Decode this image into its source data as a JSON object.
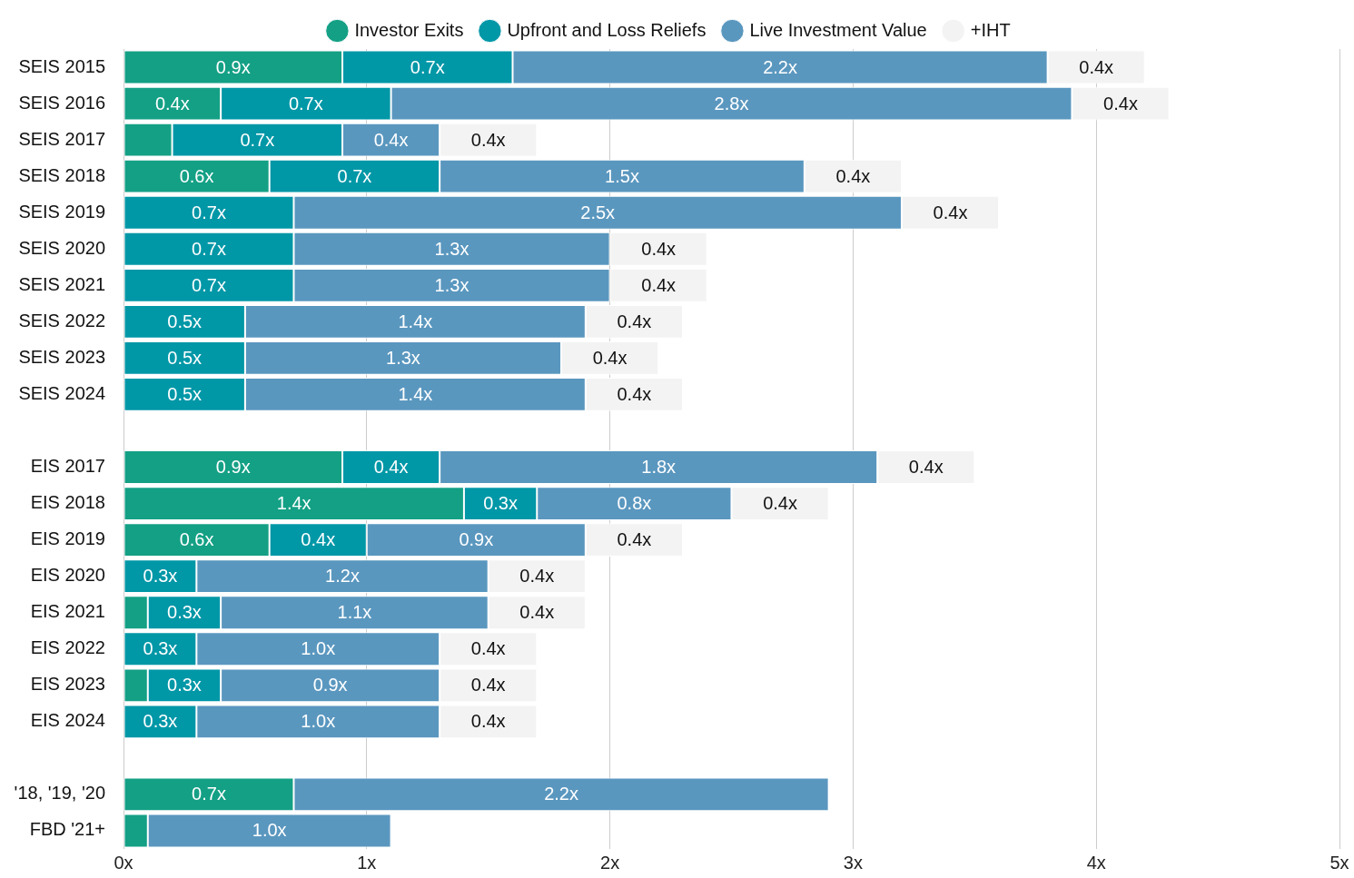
{
  "chart_data": {
    "type": "bar",
    "orientation": "horizontal",
    "stacked": true,
    "categories": [
      "SEIS 2015",
      "SEIS 2016",
      "SEIS 2017",
      "SEIS 2018",
      "SEIS 2019",
      "SEIS 2020",
      "SEIS 2021",
      "SEIS 2022",
      "SEIS 2023",
      "SEIS 2024",
      null,
      "EIS 2017",
      "EIS 2018",
      "EIS 2019",
      "EIS 2020",
      "EIS 2021",
      "EIS 2022",
      "EIS 2023",
      "EIS 2024",
      null,
      "'18, '19, '20",
      "FBD '21+"
    ],
    "series": [
      {
        "name": "Investor Exits",
        "color": "#14a085",
        "values": [
          0.9,
          0.4,
          0.2,
          0.6,
          null,
          null,
          null,
          null,
          null,
          null,
          null,
          0.9,
          1.4,
          0.6,
          null,
          0.1,
          null,
          0.1,
          null,
          null,
          0.7,
          0.1
        ],
        "value_labels": [
          "0.9x",
          "0.4x",
          null,
          "0.6x",
          null,
          null,
          null,
          null,
          null,
          null,
          null,
          "0.9x",
          "1.4x",
          "0.6x",
          null,
          null,
          null,
          null,
          null,
          null,
          "0.7x",
          null
        ]
      },
      {
        "name": "Upfront and Loss Reliefs",
        "color": "#0097a7",
        "values": [
          0.7,
          0.7,
          0.7,
          0.7,
          0.7,
          0.7,
          0.7,
          0.5,
          0.5,
          0.5,
          null,
          0.4,
          0.3,
          0.4,
          0.3,
          0.3,
          0.3,
          0.3,
          0.3,
          null,
          null,
          null
        ],
        "value_labels": [
          "0.7x",
          "0.7x",
          "0.7x",
          "0.7x",
          "0.7x",
          "0.7x",
          "0.7x",
          "0.5x",
          "0.5x",
          "0.5x",
          null,
          "0.4x",
          "0.3x",
          "0.4x",
          "0.3x",
          "0.3x",
          "0.3x",
          "0.3x",
          "0.3x",
          null,
          null,
          null
        ]
      },
      {
        "name": "Live Investment Value",
        "color": "#5a97bf",
        "values": [
          2.2,
          2.8,
          0.4,
          1.5,
          2.5,
          1.3,
          1.3,
          1.4,
          1.3,
          1.4,
          null,
          1.8,
          0.8,
          0.9,
          1.2,
          1.1,
          1.0,
          0.9,
          1.0,
          null,
          2.2,
          1.0
        ],
        "value_labels": [
          "2.2x",
          "2.8x",
          "0.4x",
          "1.5x",
          "2.5x",
          "1.3x",
          "1.3x",
          "1.4x",
          "1.3x",
          "1.4x",
          null,
          "1.8x",
          "0.8x",
          "0.9x",
          "1.2x",
          "1.1x",
          "1.0x",
          "0.9x",
          "1.0x",
          null,
          "2.2x",
          "1.0x"
        ]
      },
      {
        "name": "+IHT",
        "color": "#f3f3f3",
        "values": [
          0.4,
          0.4,
          0.4,
          0.4,
          0.4,
          0.4,
          0.4,
          0.4,
          0.4,
          0.4,
          null,
          0.4,
          0.4,
          0.4,
          0.4,
          0.4,
          0.4,
          0.4,
          0.4,
          null,
          null,
          null
        ],
        "value_labels": [
          "0.4x",
          "0.4x",
          "0.4x",
          "0.4x",
          "0.4x",
          "0.4x",
          "0.4x",
          "0.4x",
          "0.4x",
          "0.4x",
          null,
          "0.4x",
          "0.4x",
          "0.4x",
          "0.4x",
          "0.4x",
          "0.4x",
          "0.4x",
          "0.4x",
          null,
          null,
          null
        ]
      }
    ],
    "xlim": [
      0,
      5
    ],
    "xticks": [
      {
        "value": 0,
        "label": "0x"
      },
      {
        "value": 1,
        "label": "1x"
      },
      {
        "value": 2,
        "label": "2x"
      },
      {
        "value": 3,
        "label": "3x"
      },
      {
        "value": 4,
        "label": "4x"
      },
      {
        "value": 5,
        "label": "5x"
      }
    ],
    "grid": "x",
    "legend": "top"
  }
}
